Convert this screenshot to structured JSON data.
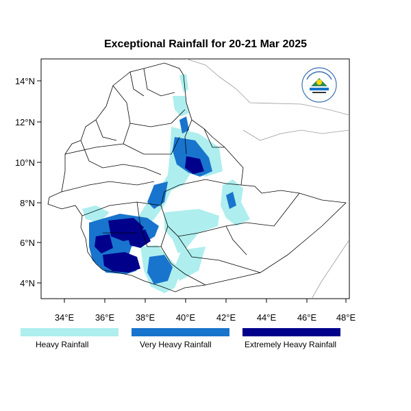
{
  "title": "Exceptional Rainfall for 20-21 Mar 2025",
  "axes": {
    "lon_ticks": [
      "34°E",
      "36°E",
      "38°E",
      "40°E",
      "42°E",
      "44°E",
      "46°E",
      "48°E"
    ],
    "lat_ticks": [
      "4°N",
      "6°N",
      "8°N",
      "10°N",
      "12°N",
      "14°N"
    ]
  },
  "legend": [
    {
      "label": "Heavy Rainfall",
      "color": "#aeeeee"
    },
    {
      "label": "Very Heavy Rainfall",
      "color": "#1874cd"
    },
    {
      "label": "Extremely Heavy Rainfall",
      "color": "#00008b"
    }
  ],
  "logo": {
    "icon": "national-meteorology-institute-logo",
    "text": "Ethiopian Meteorology Institute"
  },
  "colors": {
    "heavy": "#aeeeee",
    "very_heavy": "#1874cd",
    "extreme": "#00008b",
    "border": "#000000",
    "outer_border": "#999999"
  }
}
